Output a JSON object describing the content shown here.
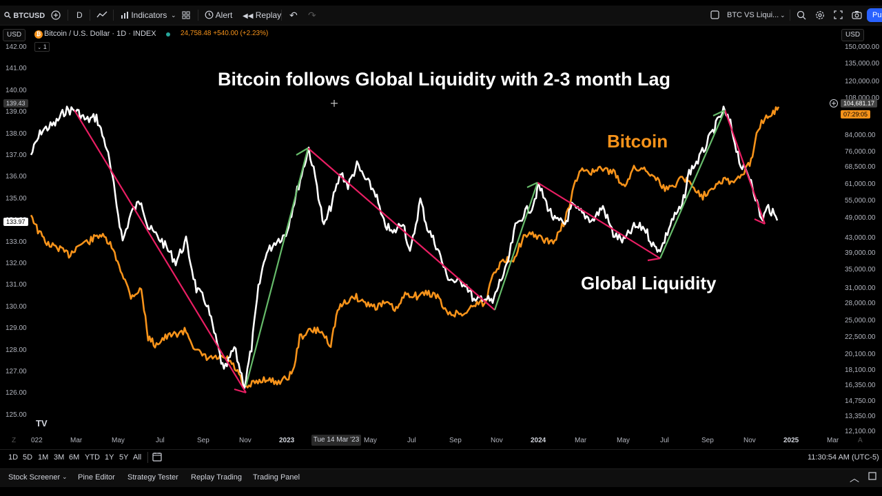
{
  "toolbar": {
    "symbol": "BTCUSD",
    "interval": "D",
    "indicators_label": "Indicators",
    "alert_label": "Alert",
    "replay_label": "Replay",
    "layout_name": "BTC VS Liqui...",
    "publish_label": "Pu"
  },
  "legend": {
    "currency_left": "USD",
    "currency_right": "USD",
    "title": "Bitcoin / U.S. Dollar · 1D · INDEX",
    "price": "24,758.48 +540.00 (+2.23%)",
    "collapse_count": "1"
  },
  "annotations": {
    "headline": "Bitcoin follows Global Liquidity with 2-3 month Lag",
    "bitcoin_label": "Bitcoin",
    "liquidity_label": "Global Liquidity"
  },
  "left_axis": [
    "142.00",
    "141.00",
    "140.00",
    "139.00",
    "138.00",
    "137.00",
    "136.00",
    "135.00",
    "134.00",
    "133.00",
    "132.00",
    "131.00",
    "130.00",
    "129.00",
    "128.00",
    "127.00",
    "126.00",
    "125.00"
  ],
  "left_axis_tags": {
    "crosshair": "139.43",
    "current": "133.97"
  },
  "right_axis": [
    "150,000.00",
    "135,000.00",
    "120,000.00",
    "108,000.00",
    "84,000.00",
    "76,000.00",
    "68,500.00",
    "61,000.00",
    "55,000.00",
    "49,000.00",
    "43,000.00",
    "39,000.00",
    "35,000.00",
    "31,000.00",
    "28,000.00",
    "25,000.00",
    "22,500.00",
    "20,100.00",
    "18,100.00",
    "16,350.00",
    "14,750.00",
    "13,350.00",
    "12,100.00"
  ],
  "right_axis_tags": {
    "btc_price": "104,681.17",
    "countdown": "07:29:05"
  },
  "time_axis": {
    "labels": [
      "022",
      "Mar",
      "May",
      "Jul",
      "Sep",
      "Nov",
      "2023",
      "May",
      "Jul",
      "Sep",
      "Nov",
      "2024",
      "Mar",
      "May",
      "Jul",
      "Sep",
      "Nov",
      "2025",
      "Mar"
    ],
    "crosshair_date": "Tue 14 Mar '23"
  },
  "range_buttons": [
    "1D",
    "5D",
    "1M",
    "3M",
    "6M",
    "YTD",
    "1Y",
    "5Y",
    "All"
  ],
  "clock": "11:30:54 AM (UTC-5)",
  "bottom_tabs": [
    "Stock Screener",
    "Pine Editor",
    "Strategy Tester",
    "Replay Trading",
    "Trading Panel"
  ],
  "colors": {
    "bitcoin": "#f7931a",
    "liquidity": "#ffffff",
    "down_trend": "#e91e63",
    "up_trend": "#66bb6a",
    "accent": "#2962ff"
  },
  "icons": [
    "search-icon",
    "add-symbol-icon",
    "indicator-chart-icon",
    "templates-icon",
    "alert-clock-icon",
    "replay-icon",
    "undo-icon",
    "redo-icon",
    "layout-checkbox-icon",
    "search-icon",
    "settings-icon",
    "fullscreen-icon",
    "camera-icon",
    "tradingview-logo-icon",
    "goto-date-icon",
    "chevron-up-icon"
  ]
}
